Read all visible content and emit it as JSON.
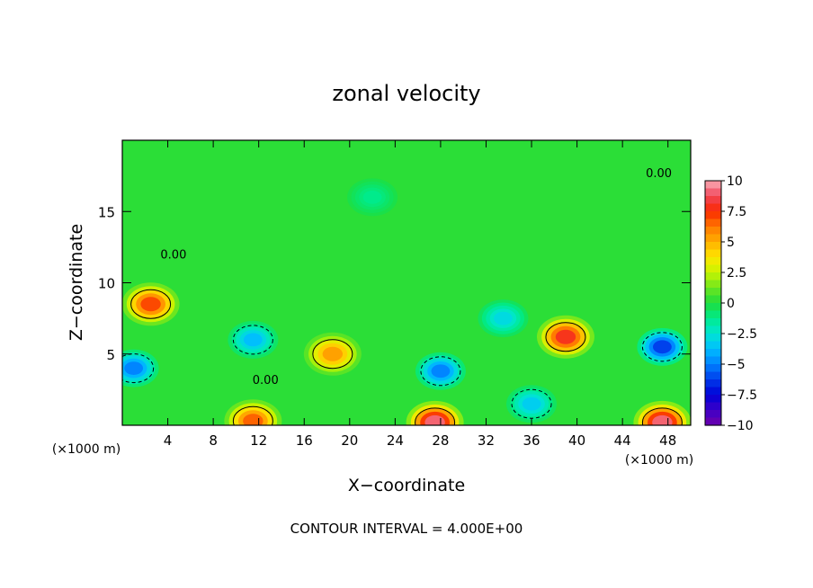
{
  "chart_data": {
    "type": "heatmap",
    "title": "zonal velocity",
    "xlabel": "X−coordinate",
    "ylabel": "Z−coordinate",
    "x_unit_left": "(×1000 m)",
    "x_unit_right": "(×1000 m)",
    "footer": "CONTOUR INTERVAL = 4.000E+00",
    "xlim": [
      0,
      50
    ],
    "ylim": [
      0,
      20
    ],
    "x_ticks": [
      4,
      8,
      12,
      16,
      20,
      24,
      28,
      32,
      36,
      40,
      44,
      48
    ],
    "x_tick_labels": [
      "4",
      "8",
      "12",
      "16",
      "20",
      "24",
      "28",
      "32",
      "36",
      "40",
      "44",
      "48"
    ],
    "y_ticks": [
      5,
      10,
      15
    ],
    "y_tick_labels": [
      "5",
      "10",
      "15"
    ],
    "contour_interval": 4.0,
    "contour_labels": [
      {
        "text": "0.00",
        "x": 4.5,
        "y": 11.7
      },
      {
        "text": "0.00",
        "x": 12.6,
        "y": 2.9
      },
      {
        "text": "0.00",
        "x": 47.2,
        "y": 17.4
      }
    ],
    "colorbar": {
      "min": -10,
      "max": 10,
      "tick_values": [
        10,
        7.5,
        5,
        2.5,
        0,
        -2.5,
        -5,
        -7.5,
        -10
      ],
      "tick_labels": [
        "10",
        "7.5",
        "5",
        "2.5",
        "0",
        "−2.5",
        "−5",
        "−7.5",
        "−10"
      ]
    },
    "field_features": [
      {
        "kind": "max",
        "x": 2.5,
        "y": 8.5,
        "value": 8.5
      },
      {
        "kind": "max",
        "x": 18.5,
        "y": 5.0,
        "value": 6.5
      },
      {
        "kind": "max",
        "x": 39.0,
        "y": 6.2,
        "value": 9.5
      },
      {
        "kind": "max",
        "x": 11.5,
        "y": 0.3,
        "value": 8.0
      },
      {
        "kind": "max",
        "x": 27.5,
        "y": 0.2,
        "value": 11.0
      },
      {
        "kind": "max",
        "x": 47.5,
        "y": 0.2,
        "value": 11.0
      },
      {
        "kind": "min",
        "x": 1.0,
        "y": 4.0,
        "value": -6.0
      },
      {
        "kind": "min",
        "x": 11.5,
        "y": 6.0,
        "value": -4.5
      },
      {
        "kind": "min",
        "x": 28.0,
        "y": 3.8,
        "value": -6.0
      },
      {
        "kind": "min",
        "x": 47.5,
        "y": 5.5,
        "value": -7.5
      },
      {
        "kind": "min",
        "x": 36.0,
        "y": 1.5,
        "value": -4.0
      },
      {
        "kind": "min",
        "x": 33.5,
        "y": 7.5,
        "value": -3.5
      },
      {
        "kind": "min",
        "x": 22.0,
        "y": 16.0,
        "value": -1.5
      }
    ]
  }
}
